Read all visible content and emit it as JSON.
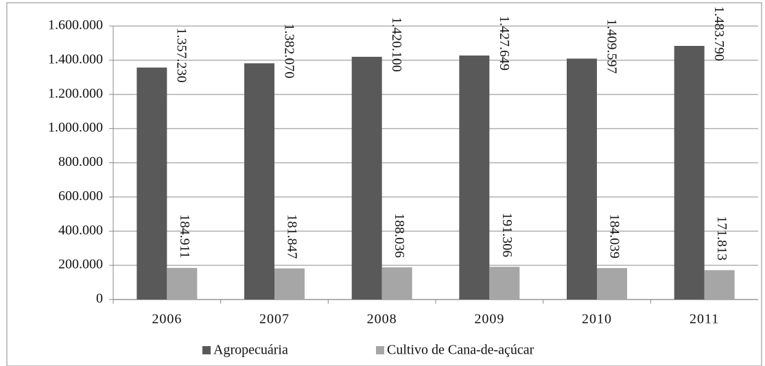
{
  "chart_data": {
    "type": "bar",
    "categories": [
      "2006",
      "2007",
      "2008",
      "2009",
      "2010",
      "2011"
    ],
    "series": [
      {
        "name": "Agropecuária",
        "color": "#595959",
        "values": [
          1357230,
          1382070,
          1420100,
          1427649,
          1409597,
          1483790
        ],
        "value_labels": [
          "1.357.230",
          "1.382.070",
          "1.420.100",
          "1.427.649",
          "1.409.597",
          "1.483.790"
        ]
      },
      {
        "name": "Cultivo de Cana-de-açúcar",
        "color": "#a6a6a6",
        "values": [
          184911,
          181847,
          188036,
          191306,
          184039,
          171813
        ],
        "value_labels": [
          "184.911",
          "181.847",
          "188.036",
          "191.306",
          "184.039",
          "171.813"
        ]
      }
    ],
    "ylim": [
      0,
      1600000
    ],
    "yticks": [
      0,
      {
        "value": 200000,
        "label": "200.000"
      },
      {
        "value": 400000,
        "label": "400.000"
      },
      {
        "value": 600000,
        "label": "600.000"
      },
      {
        "value": 800000,
        "label": "800.000"
      },
      {
        "value": 1000000,
        "label": "1.000.000"
      },
      {
        "value": 1200000,
        "label": "1.200.000"
      },
      {
        "value": 1400000,
        "label": "1.400.000"
      },
      {
        "value": 1600000,
        "label": "1.600.000"
      }
    ],
    "grid": true,
    "legend": "bottom"
  }
}
